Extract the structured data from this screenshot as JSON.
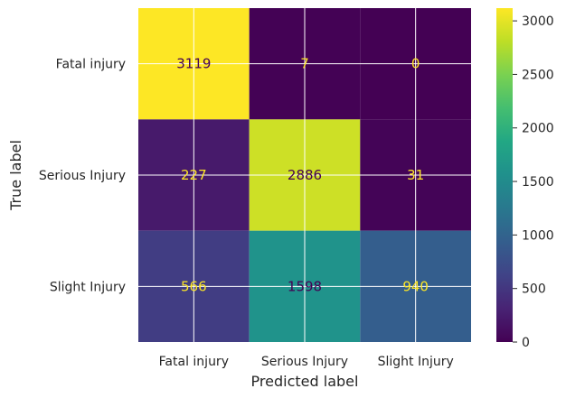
{
  "chart_data": {
    "type": "heatmap",
    "xlabel": "Predicted label",
    "ylabel": "True label",
    "x_categories": [
      "Fatal injury",
      "Serious Injury",
      "Slight Injury"
    ],
    "y_categories": [
      "Fatal injury",
      "Serious Injury",
      "Slight Injury"
    ],
    "values": [
      [
        3119,
        7,
        0
      ],
      [
        227,
        2886,
        31
      ],
      [
        566,
        1598,
        940
      ]
    ],
    "colormap": "viridis",
    "colorbar": {
      "range": [
        0,
        3119
      ],
      "ticks": [
        0,
        500,
        1000,
        1500,
        2000,
        2500,
        3000
      ]
    },
    "grid": true,
    "text_colors": {
      "dark_on_light": "#440154",
      "light_on_dark": "#fde725"
    }
  }
}
